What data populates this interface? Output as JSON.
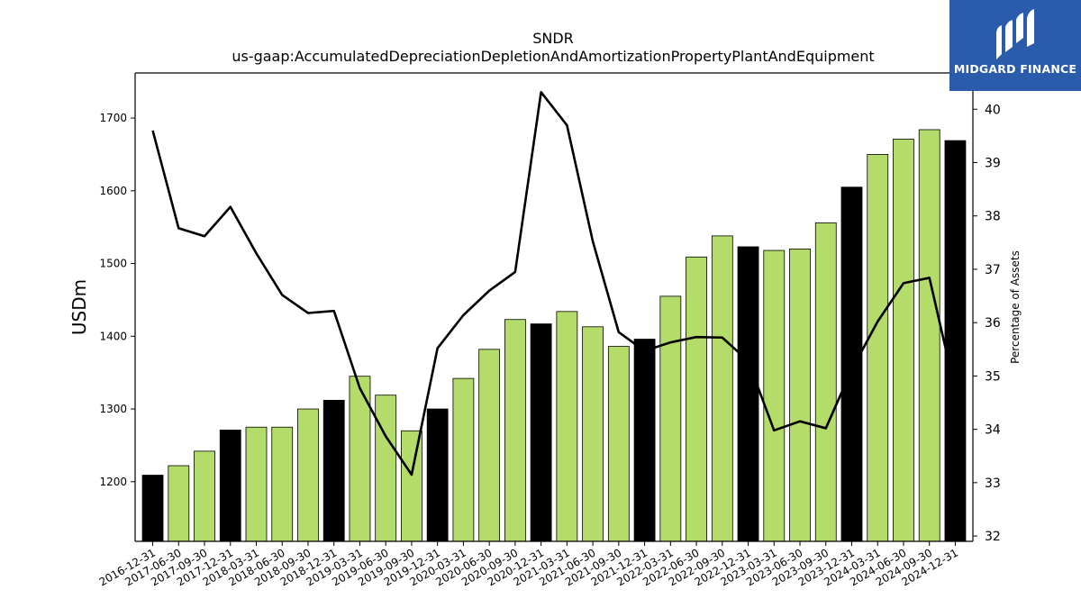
{
  "chart_data": {
    "type": "bar",
    "title": "SNDR",
    "subtitle": "us-gaap:AccumulatedDepreciationDepletionAndAmortizationPropertyPlantAndEquipment",
    "ylabel": "USDm",
    "y2label": "Percentage of Assets",
    "ylim": [
      1118,
      1762
    ],
    "y2lim": [
      31.9,
      40.68
    ],
    "yticks": [
      1200,
      1300,
      1400,
      1500,
      1600,
      1700
    ],
    "y2ticks": [
      32,
      33,
      34,
      35,
      36,
      37,
      38,
      39,
      40
    ],
    "categories": [
      "2016-12-31",
      "2017-06-30",
      "2017-09-30",
      "2017-12-31",
      "2018-03-31",
      "2018-06-30",
      "2018-09-30",
      "2018-12-31",
      "2019-03-31",
      "2019-06-30",
      "2019-09-30",
      "2019-12-31",
      "2020-03-31",
      "2020-06-30",
      "2020-09-30",
      "2020-12-31",
      "2021-03-31",
      "2021-06-30",
      "2021-09-30",
      "2021-12-31",
      "2022-03-31",
      "2022-06-30",
      "2022-09-30",
      "2022-12-31",
      "2023-03-31",
      "2023-06-30",
      "2023-09-30",
      "2023-12-31",
      "2024-03-31",
      "2024-06-30",
      "2024-09-30",
      "2024-12-31"
    ],
    "values": [
      1209,
      1222,
      1242,
      1271,
      1275,
      1275,
      1300,
      1312,
      1345,
      1319,
      1270,
      1300,
      1342,
      1382,
      1423,
      1417,
      1434,
      1413,
      1386,
      1396,
      1455,
      1509,
      1538,
      1523,
      1518,
      1520,
      1556,
      1605,
      1650,
      1671,
      1684,
      1669
    ],
    "highlight": [
      true,
      false,
      false,
      true,
      false,
      false,
      false,
      true,
      false,
      false,
      false,
      true,
      false,
      false,
      false,
      true,
      false,
      false,
      false,
      true,
      false,
      false,
      false,
      true,
      false,
      false,
      false,
      true,
      false,
      false,
      false,
      true
    ],
    "pct_assets": [
      39.6,
      37.77,
      37.62,
      38.17,
      37.3,
      36.52,
      36.18,
      36.22,
      34.77,
      33.87,
      33.15,
      35.52,
      36.14,
      36.6,
      36.95,
      40.32,
      39.7,
      37.52,
      35.82,
      35.47,
      35.63,
      35.73,
      35.72,
      35.28,
      33.98,
      34.15,
      34.02,
      35.12,
      36.02,
      36.74,
      36.84,
      34.73
    ],
    "colors": {
      "bar": "#b3dc6a",
      "bar_highlight": "#000000",
      "line": "#000000"
    },
    "grid": false
  },
  "logo": {
    "text": "MIDGARD FINANCE",
    "background": "#2a5cab"
  }
}
